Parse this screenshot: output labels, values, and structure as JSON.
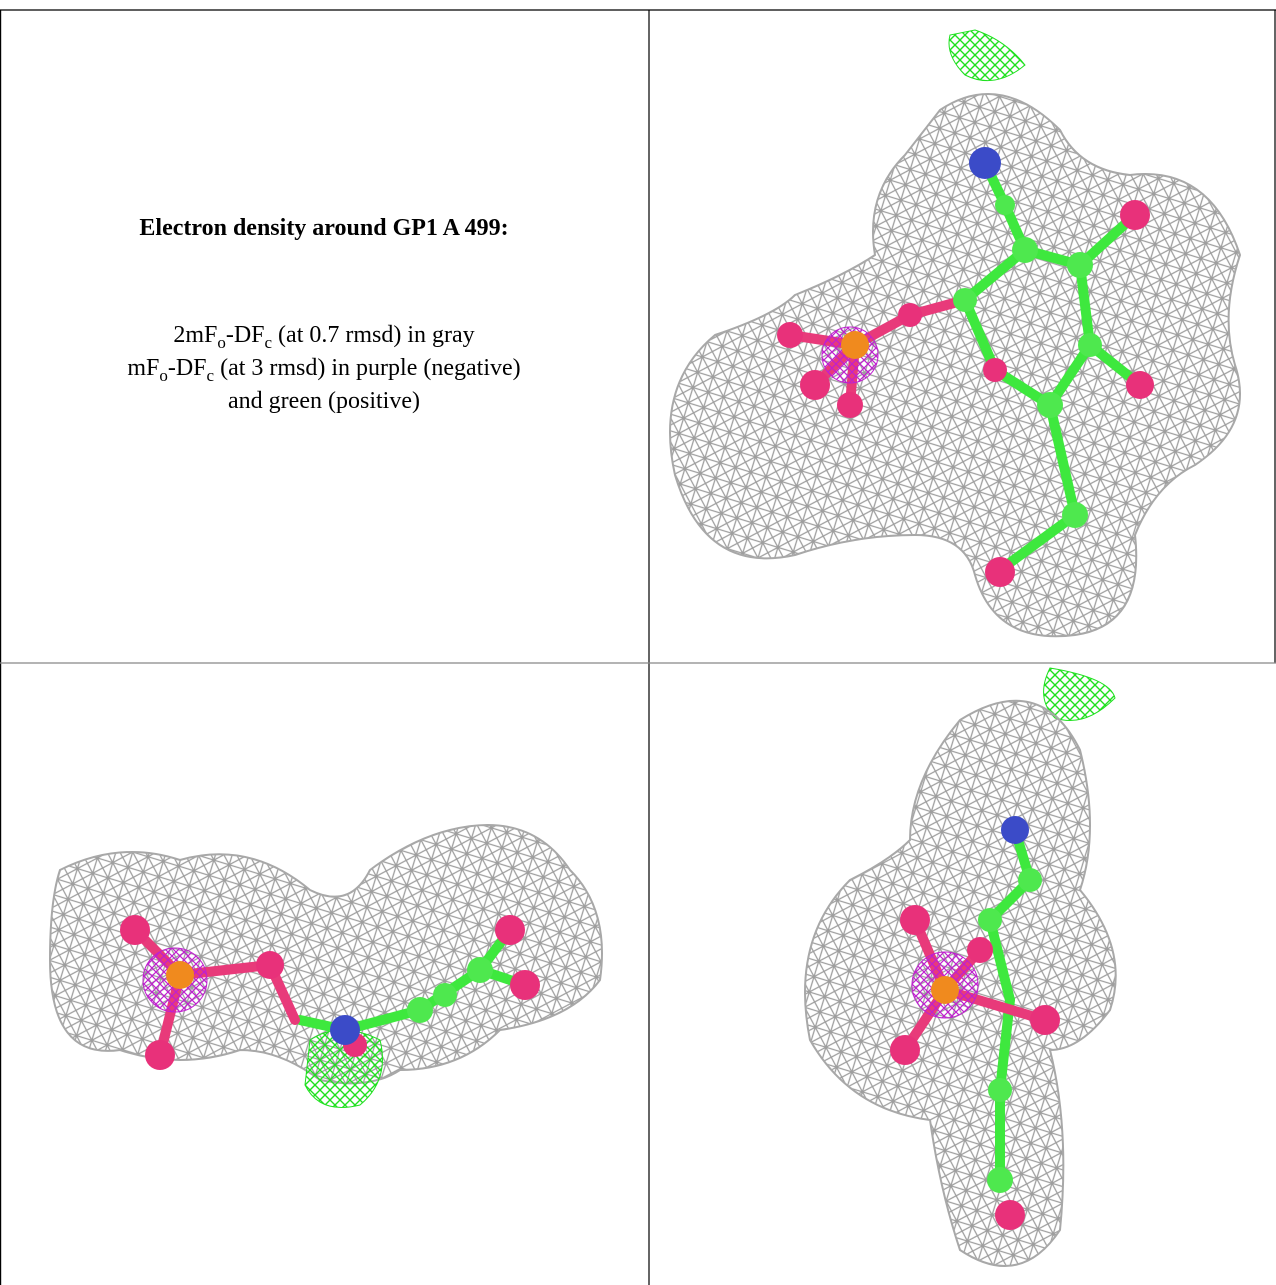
{
  "caption": {
    "title": "Electron density around GP1 A 499:",
    "lines": [
      [
        "2mF",
        "o",
        "-DF",
        "c",
        " (at 0.7 rmsd) in gray"
      ],
      [
        "mF",
        "o",
        "-DF",
        "c",
        " (at 3 rmsd) in purple (negative)"
      ],
      [
        "and green (positive)"
      ]
    ]
  }
}
